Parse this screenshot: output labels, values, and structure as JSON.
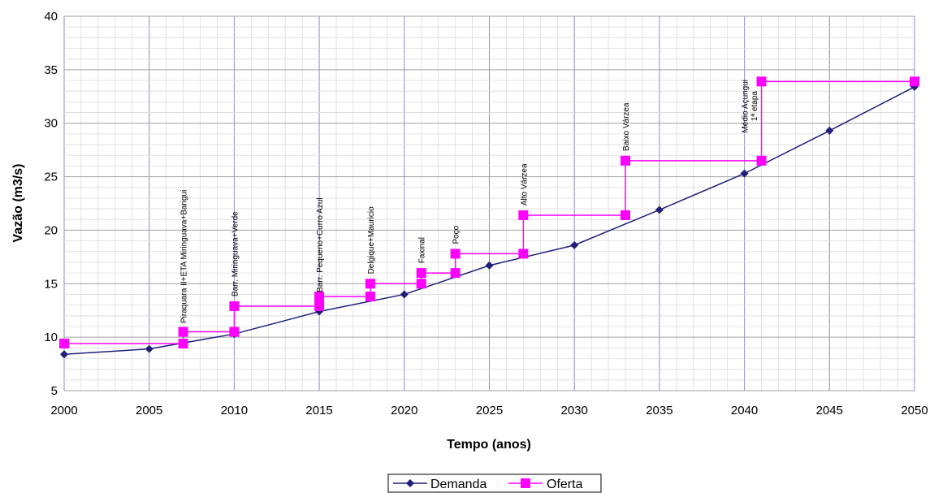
{
  "chart_data": {
    "type": "line",
    "title": "",
    "xlabel": "Tempo (anos)",
    "ylabel": "Vazão (m3/s)",
    "xlim": [
      2000,
      2050
    ],
    "ylim": [
      5,
      40
    ],
    "x_ticks": [
      2000,
      2005,
      2010,
      2015,
      2020,
      2025,
      2030,
      2035,
      2040,
      2045,
      2050
    ],
    "y_ticks": [
      5,
      10,
      15,
      20,
      25,
      30,
      35,
      40
    ],
    "grid": true,
    "legend_position": "bottom",
    "series": [
      {
        "name": "Demanda",
        "color": "#1f1f7a",
        "marker": "diamond",
        "x": [
          2000,
          2005,
          2010,
          2015,
          2020,
          2025,
          2030,
          2035,
          2040,
          2045,
          2050
        ],
        "y": [
          8.4,
          8.9,
          10.3,
          12.4,
          14.0,
          16.7,
          18.6,
          21.9,
          25.3,
          29.3,
          33.4
        ]
      },
      {
        "name": "Oferta",
        "color": "#ff00ff",
        "marker": "square",
        "step": true,
        "x": [
          2000,
          2007,
          2007,
          2010,
          2010,
          2015,
          2015,
          2018,
          2018,
          2021,
          2021,
          2023,
          2023,
          2027,
          2027,
          2033,
          2033,
          2041,
          2041,
          2050
        ],
        "y": [
          9.4,
          9.4,
          10.5,
          10.5,
          12.9,
          12.9,
          13.8,
          13.8,
          15.0,
          15.0,
          16.0,
          16.0,
          17.8,
          17.8,
          21.4,
          21.4,
          26.5,
          26.5,
          33.9,
          33.9
        ]
      }
    ],
    "annotations": [
      {
        "x": 2007,
        "y": 11.3,
        "text": "Piraquara II+ETA Miringuava+Barigui"
      },
      {
        "x": 2010,
        "y": 13.8,
        "text": "Barr. Miringuava+Verde"
      },
      {
        "x": 2015,
        "y": 14.2,
        "text": "Barr. Pequeno+Curro Azul"
      },
      {
        "x": 2018,
        "y": 15.9,
        "text": "Delgique+Mauricio"
      },
      {
        "x": 2021,
        "y": 16.9,
        "text": "Faxinal"
      },
      {
        "x": 2023,
        "y": 18.7,
        "text": "Poço"
      },
      {
        "x": 2027,
        "y": 22.3,
        "text": "Alto Várzea"
      },
      {
        "x": 2033,
        "y": 27.4,
        "text": "Baixo Várzea"
      },
      {
        "x": 2040,
        "y": 29.1,
        "text": "Médio Açungui"
      },
      {
        "x": 2040.55,
        "y": 30.2,
        "text": "1ª etapa"
      }
    ]
  }
}
